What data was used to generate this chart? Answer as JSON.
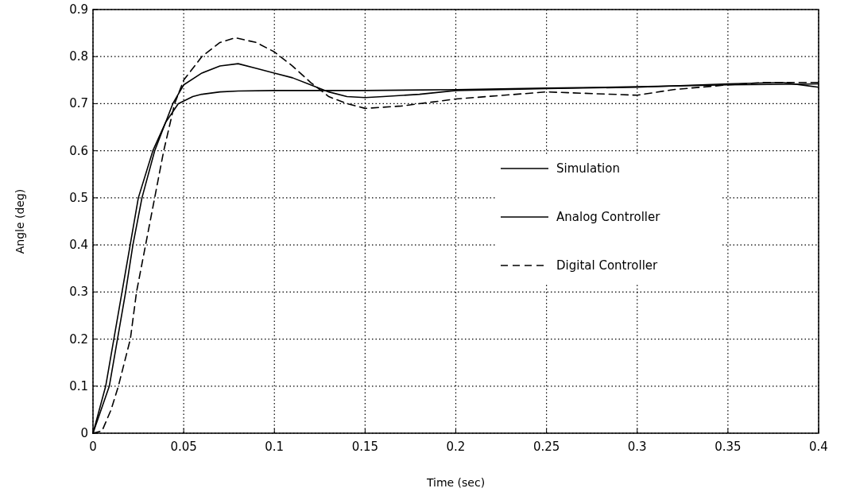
{
  "chart_data": {
    "type": "line",
    "xlabel": "Time (sec)",
    "ylabel": "Angle (deg)",
    "xlim": [
      0,
      0.4
    ],
    "ylim": [
      0,
      0.9
    ],
    "xticks": [
      0,
      0.05,
      0.1,
      0.15,
      0.2,
      0.25,
      0.3,
      0.35,
      0.4
    ],
    "yticks": [
      0,
      0.1,
      0.2,
      0.3,
      0.4,
      0.5,
      0.6,
      0.7,
      0.8,
      0.9
    ],
    "grid": true,
    "legend": "right",
    "marker": "none",
    "series": [
      {
        "name": "Simulation",
        "color": "#000000",
        "line_style": "solid",
        "x": [
          0,
          0.007,
          0.016,
          0.025,
          0.033,
          0.04,
          0.047,
          0.055,
          0.06,
          0.07,
          0.08,
          0.1,
          0.15,
          0.2,
          0.25,
          0.3,
          0.35,
          0.4
        ],
        "values": [
          0,
          0.1,
          0.3,
          0.5,
          0.6,
          0.66,
          0.7,
          0.715,
          0.72,
          0.725,
          0.727,
          0.728,
          0.728,
          0.73,
          0.733,
          0.736,
          0.74,
          0.742
        ]
      },
      {
        "name": "Analog Controller",
        "color": "#000000",
        "line_style": "solid",
        "x": [
          0,
          0.009,
          0.0135,
          0.018,
          0.022,
          0.027,
          0.034,
          0.044,
          0.05,
          0.06,
          0.07,
          0.08,
          0.09,
          0.1,
          0.11,
          0.12,
          0.13,
          0.14,
          0.15,
          0.16,
          0.18,
          0.2,
          0.25,
          0.3,
          0.35,
          0.38,
          0.4
        ],
        "values": [
          0,
          0.1,
          0.2,
          0.3,
          0.4,
          0.5,
          0.6,
          0.7,
          0.74,
          0.765,
          0.78,
          0.785,
          0.775,
          0.765,
          0.755,
          0.74,
          0.725,
          0.715,
          0.713,
          0.715,
          0.72,
          0.728,
          0.732,
          0.735,
          0.742,
          0.745,
          0.735
        ]
      },
      {
        "name": "Digital Controller",
        "color": "#000000",
        "line_style": "dashed",
        "x": [
          0,
          0.005,
          0.01,
          0.014,
          0.0206,
          0.024,
          0.029,
          0.034,
          0.039,
          0.045,
          0.05,
          0.06,
          0.07,
          0.0785,
          0.09,
          0.1,
          0.11,
          0.12,
          0.13,
          0.14,
          0.15,
          0.17,
          0.2,
          0.25,
          0.3,
          0.32,
          0.35,
          0.37,
          0.4
        ],
        "values": [
          0,
          0.005,
          0.05,
          0.1,
          0.2,
          0.3,
          0.4,
          0.5,
          0.6,
          0.7,
          0.75,
          0.8,
          0.83,
          0.84,
          0.83,
          0.81,
          0.78,
          0.745,
          0.715,
          0.7,
          0.69,
          0.695,
          0.71,
          0.725,
          0.718,
          0.73,
          0.74,
          0.745,
          0.745
        ]
      }
    ]
  }
}
